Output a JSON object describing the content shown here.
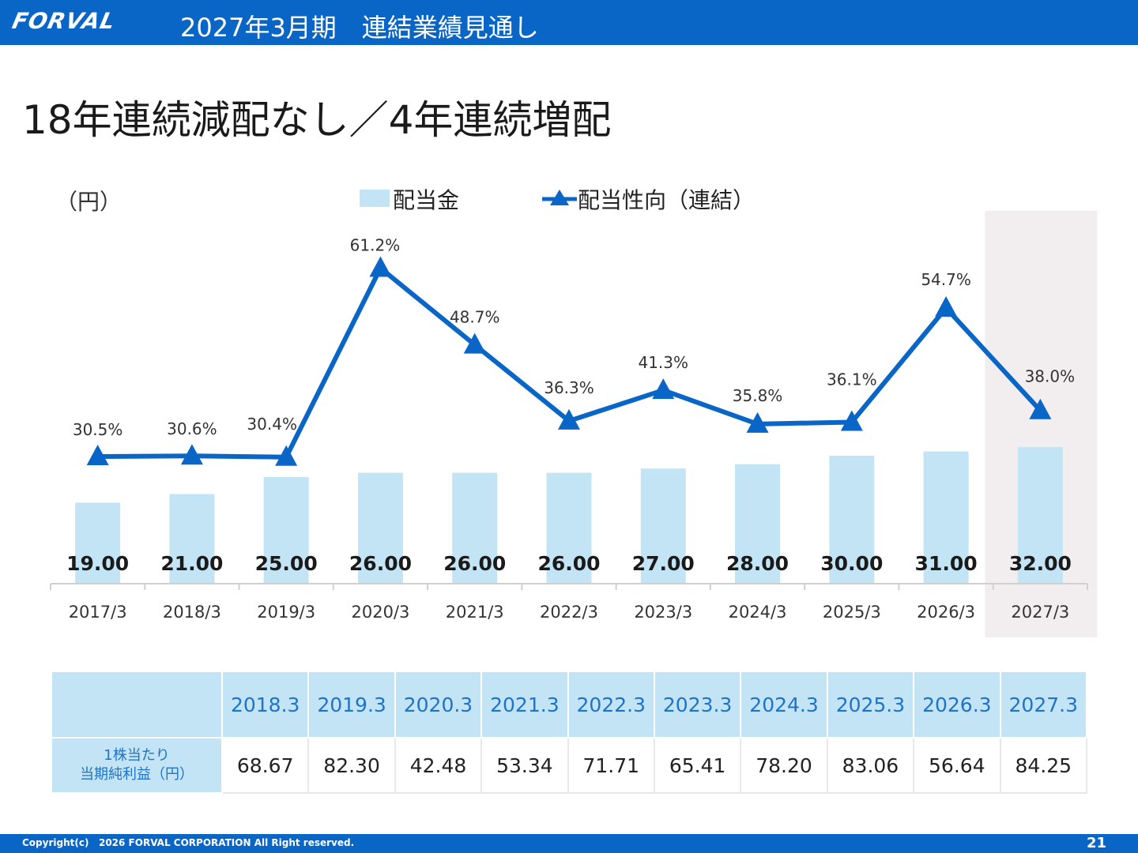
{
  "header": {
    "logo_text": "FORVAL",
    "title": "2027年3月期　連結業績見通し"
  },
  "headline": "18年連続減配なし／4年連続増配",
  "chart_data": {
    "type": "bar",
    "unit_label": "（円）",
    "categories": [
      "2017/3",
      "2018/3",
      "2019/3",
      "2020/3",
      "2021/3",
      "2022/3",
      "2023/3",
      "2024/3",
      "2025/3",
      "2026/3",
      "2027/3"
    ],
    "series": [
      {
        "name": "配当金",
        "type": "bar",
        "values": [
          19.0,
          21.0,
          25.0,
          26.0,
          26.0,
          26.0,
          27.0,
          28.0,
          30.0,
          31.0,
          32.0
        ],
        "labels": [
          "19.00",
          "21.00",
          "25.00",
          "26.00",
          "26.00",
          "26.00",
          "27.00",
          "28.00",
          "30.00",
          "31.00",
          "32.00"
        ],
        "color": "#c2e4f4"
      },
      {
        "name": "配当性向（連結）",
        "type": "line",
        "values": [
          30.5,
          30.6,
          30.4,
          61.2,
          48.7,
          36.3,
          41.3,
          35.8,
          36.1,
          54.7,
          38.0
        ],
        "labels": [
          "30.5%",
          "30.6%",
          "30.4%",
          "61.2%",
          "48.7%",
          "36.3%",
          "41.3%",
          "35.8%",
          "36.1%",
          "54.7%",
          "38.0%"
        ],
        "color": "#0a66c6",
        "marker": "triangle"
      }
    ],
    "highlight_category": "2027/3",
    "highlight_color": "#f2eef0",
    "legend_position": "top-center",
    "grid": false
  },
  "eps_table": {
    "row_header": "1株当たり\n当期純利益（円）",
    "years": [
      "2018.3",
      "2019.3",
      "2020.3",
      "2021.3",
      "2022.3",
      "2023.3",
      "2024.3",
      "2025.3",
      "2026.3",
      "2027.3"
    ],
    "values": [
      "68.67",
      "82.30",
      "42.48",
      "53.34",
      "71.71",
      "65.41",
      "78.20",
      "83.06",
      "56.64",
      "84.25"
    ]
  },
  "footer": {
    "copyright": "Copyright(c)   2026 FORVAL CORPORATION All Right reserved.",
    "page_number": "21"
  }
}
